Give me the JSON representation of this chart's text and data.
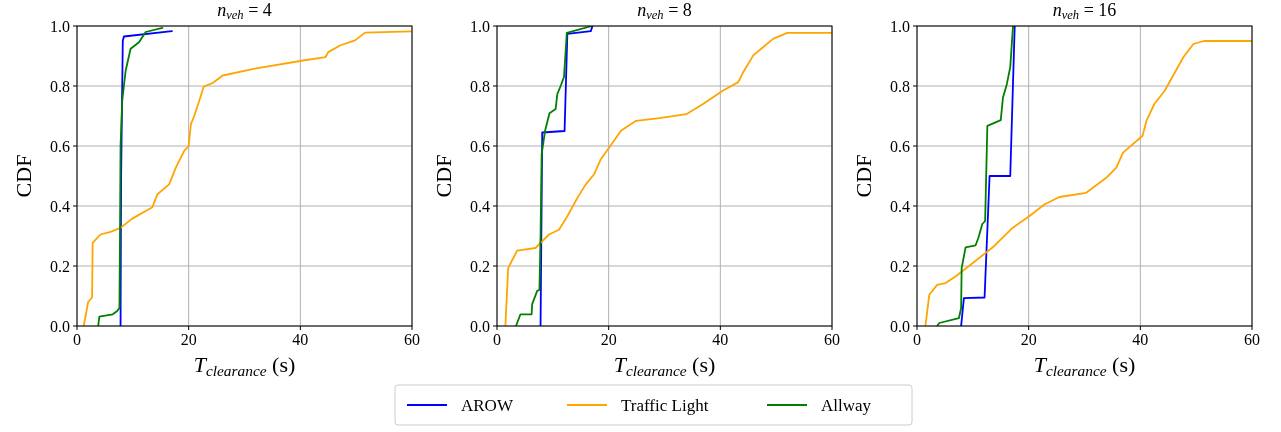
{
  "chart_data": [
    {
      "type": "line",
      "title": "n$_{veh}$ = 4",
      "xlabel": "T$_{clearance}$ (s)",
      "ylabel": "CDF",
      "xlim": [
        0,
        60
      ],
      "ylim": [
        0,
        1
      ],
      "xticks": [
        0,
        20,
        40,
        60
      ],
      "yticks": [
        {
          "value": 0,
          "label": "0.0"
        },
        {
          "value": 0.2,
          "label": "0.2"
        },
        {
          "value": 0.4,
          "label": "0.4"
        },
        {
          "value": 0.6,
          "label": "0.6"
        },
        {
          "value": 0.8,
          "label": "0.8"
        },
        {
          "value": 1,
          "label": "1.0"
        }
      ],
      "grid": true,
      "legend": "bottom",
      "series": [
        {
          "name": "AROW",
          "color": "#0000ff",
          "x": [
            7.8,
            7.9,
            8.2,
            8.4,
            17
          ],
          "values": [
            0,
            0.5,
            0.95,
            0.965,
            0.983
          ]
        },
        {
          "name": "Traffic Light",
          "color": "#ffa500",
          "x": [
            1.2,
            2.0,
            2.7,
            2.8,
            4.2,
            6.0,
            7.8,
            9.9,
            13.5,
            14.4,
            16.5,
            17.7,
            19.2,
            20.0,
            20.4,
            21.0,
            21.9,
            22.7,
            24.3,
            26.1,
            32.1,
            40.5,
            44.5,
            45.0,
            47.1,
            49.8,
            51.6,
            60
          ],
          "values": [
            0,
            0.08,
            0.095,
            0.277,
            0.305,
            0.314,
            0.327,
            0.358,
            0.396,
            0.439,
            0.472,
            0.528,
            0.584,
            0.6,
            0.673,
            0.7,
            0.751,
            0.798,
            0.81,
            0.835,
            0.859,
            0.885,
            0.896,
            0.913,
            0.935,
            0.952,
            0.978,
            0.982
          ]
        },
        {
          "name": "Allway",
          "color": "#008000",
          "x": [
            3.8,
            4.0,
            6.4,
            7.2,
            7.6,
            7.7,
            7.8,
            8.1,
            8.7,
            9.6,
            11.1,
            12.3,
            15.3
          ],
          "values": [
            0,
            0.031,
            0.039,
            0.05,
            0.06,
            0.3,
            0.6,
            0.75,
            0.85,
            0.924,
            0.946,
            0.98,
            0.994
          ]
        }
      ]
    },
    {
      "type": "line",
      "title": "n$_{veh}$ = 8",
      "xlabel": "T$_{clearance}$ (s)",
      "ylabel": "CDF",
      "xlim": [
        0,
        60
      ],
      "ylim": [
        0,
        1
      ],
      "xticks": [
        0,
        20,
        40,
        60
      ],
      "yticks": [
        {
          "value": 0,
          "label": "0.0"
        },
        {
          "value": 0.2,
          "label": "0.2"
        },
        {
          "value": 0.4,
          "label": "0.4"
        },
        {
          "value": 0.6,
          "label": "0.6"
        },
        {
          "value": 0.8,
          "label": "0.8"
        },
        {
          "value": 1,
          "label": "1.0"
        }
      ],
      "grid": true,
      "series": [
        {
          "color": "#0000ff",
          "x": [
            7.8,
            8.1,
            12.1,
            12.6,
            16.8,
            17.1
          ],
          "values": [
            0,
            0.645,
            0.65,
            0.974,
            0.983,
            1.0
          ]
        },
        {
          "color": "#ffa500",
          "x": [
            1.5,
            2.0,
            2.6,
            3.6,
            6.9,
            9.3,
            11.1,
            12.6,
            14.4,
            15.9,
            17.4,
            18.6,
            20.1,
            22.2,
            24.9,
            29.1,
            33.9,
            36.9,
            40.5,
            43.2,
            44.1,
            45.9,
            47.7,
            49.5,
            52,
            60
          ],
          "values": [
            0,
            0.193,
            0.215,
            0.251,
            0.26,
            0.305,
            0.321,
            0.366,
            0.427,
            0.472,
            0.506,
            0.556,
            0.595,
            0.651,
            0.684,
            0.693,
            0.706,
            0.74,
            0.785,
            0.813,
            0.846,
            0.902,
            0.93,
            0.958,
            0.977,
            0.977
          ]
        },
        {
          "color": "#008000",
          "x": [
            3.4,
            4.2,
            6.2,
            6.3,
            7.2,
            7.6,
            7.8,
            8.0,
            8.6,
            9.4,
            10.5,
            10.8,
            11.4,
            12.0,
            12.5,
            17.0
          ],
          "values": [
            0,
            0.039,
            0.039,
            0.073,
            0.117,
            0.12,
            0.3,
            0.573,
            0.65,
            0.709,
            0.723,
            0.773,
            0.8,
            0.83,
            0.977,
            1.0
          ]
        }
      ]
    },
    {
      "type": "line",
      "title": "n$_{veh}$ = 16",
      "xlabel": "T$_{clearance}$ (s)",
      "ylabel": "CDF",
      "xlim": [
        0,
        60
      ],
      "ylim": [
        0,
        1
      ],
      "xticks": [
        0,
        20,
        40,
        60
      ],
      "yticks": [
        {
          "value": 0,
          "label": "0.0"
        },
        {
          "value": 0.2,
          "label": "0.2"
        },
        {
          "value": 0.4,
          "label": "0.4"
        },
        {
          "value": 0.6,
          "label": "0.6"
        },
        {
          "value": 0.8,
          "label": "0.8"
        },
        {
          "value": 1,
          "label": "1.0"
        }
      ],
      "grid": true,
      "series": [
        {
          "color": "#0000ff",
          "x": [
            7.9,
            8.4,
            12.1,
            13.0,
            16.7,
            17.5
          ],
          "values": [
            0,
            0.093,
            0.095,
            0.5,
            0.5,
            1.0
          ]
        },
        {
          "color": "#ffa500",
          "x": [
            1.5,
            2.2,
            3.6,
            5.1,
            6.9,
            9.6,
            13.8,
            17.1,
            20.1,
            22.8,
            25.5,
            30.3,
            33.9,
            35.7,
            36.9,
            40.4,
            41.1,
            42.5,
            44.4,
            46.2,
            47.7,
            49.5,
            51.4,
            60
          ],
          "values": [
            0,
            0.104,
            0.137,
            0.143,
            0.165,
            0.204,
            0.266,
            0.327,
            0.366,
            0.405,
            0.43,
            0.444,
            0.494,
            0.528,
            0.578,
            0.634,
            0.684,
            0.74,
            0.785,
            0.846,
            0.896,
            0.94,
            0.95,
            0.95
          ]
        },
        {
          "color": "#008000",
          "x": [
            3.6,
            4.0,
            7.5,
            7.9,
            8.0,
            8.7,
            10.5,
            11.0,
            11.7,
            12.2,
            12.6,
            15.0,
            15.4,
            16.1,
            16.7,
            17.2
          ],
          "values": [
            0,
            0.01,
            0.026,
            0.059,
            0.193,
            0.262,
            0.269,
            0.294,
            0.34,
            0.35,
            0.667,
            0.686,
            0.762,
            0.807,
            0.863,
            1.0
          ]
        }
      ]
    }
  ]
}
